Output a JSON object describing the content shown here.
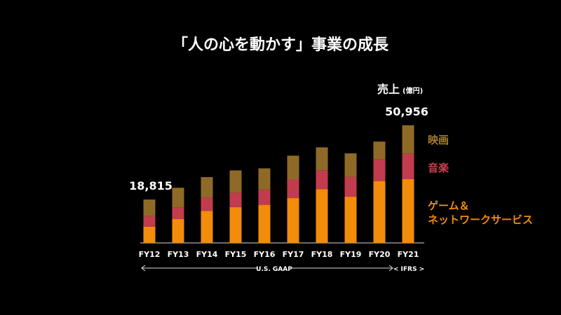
{
  "title": "「人の心を動かす」事業の成長",
  "unit_label": "売上",
  "unit_sub": "(億円)",
  "colors": {
    "movie": "#8f6a26",
    "music": "#c23c4e",
    "game": "#f28c0a",
    "legend_movie": "#a57d2c",
    "legend_music": "#c9404f",
    "legend_game": "#f28c0a"
  },
  "legend": {
    "movie": "映画",
    "music": "音楽",
    "game_line1": "ゲーム＆",
    "game_line2": "ネットワークサービス"
  },
  "chart_data": {
    "type": "bar",
    "stacked": true,
    "categories": [
      "FY12",
      "FY13",
      "FY14",
      "FY15",
      "FY16",
      "FY17",
      "FY18",
      "FY19",
      "FY20",
      "FY21"
    ],
    "series": [
      {
        "name": "ゲーム＆ネットワークサービス",
        "values": [
          7000,
          10300,
          13900,
          15500,
          16500,
          19400,
          23300,
          20000,
          26800,
          27600
        ]
      },
      {
        "name": "音楽",
        "values": [
          4600,
          5100,
          5700,
          6300,
          6600,
          8200,
          8200,
          8600,
          9500,
          11000
        ]
      },
      {
        "name": "映画",
        "values": [
          7200,
          8500,
          8900,
          9600,
          9200,
          10200,
          9900,
          10200,
          7600,
          12356
        ]
      }
    ],
    "data_labels": [
      {
        "category": "FY12",
        "text": "18,815"
      },
      {
        "category": "FY21",
        "text": "50,956"
      }
    ],
    "ylim": [
      0,
      51000
    ],
    "grid": false,
    "legend_placement": "right",
    "accounting_labels": {
      "gaap": "U.S. GAAP",
      "ifrs": "< IFRS >"
    }
  }
}
